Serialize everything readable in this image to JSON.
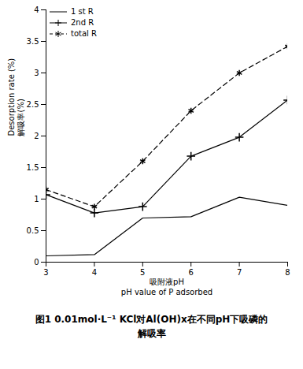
{
  "chart_data": {
    "type": "line",
    "caption": "图1 0.01mol·L⁻¹ KCl对Al(OH)x在不同pH下吸磷的解吸率",
    "x_label": [
      "吸附液pH",
      "pH value of P adsorbed"
    ],
    "y_label": [
      "Desorption rate (%)",
      "解吸率(%)"
    ],
    "x": [
      3,
      4,
      5,
      6,
      7,
      8
    ],
    "series": [
      {
        "name": "1 st R",
        "color": "#000000",
        "marker": "none",
        "line_style": "solid",
        "values": [
          0.1,
          0.12,
          0.7,
          0.72,
          1.03,
          0.9
        ]
      },
      {
        "name": "2nd R",
        "color": "#000000",
        "marker": "plus",
        "line_style": "solid",
        "values": [
          1.07,
          0.78,
          0.88,
          1.68,
          1.98,
          2.57
        ]
      },
      {
        "name": "total R",
        "color": "#000000",
        "marker": "asterisk",
        "line_style": "dashed",
        "values": [
          1.15,
          0.88,
          1.6,
          2.4,
          3.0,
          3.42
        ]
      }
    ],
    "xlim": [
      3,
      8
    ],
    "xticks": [
      3,
      4,
      5,
      6,
      7,
      8
    ],
    "ylim": [
      0,
      4
    ],
    "yticks": [
      0,
      0.5,
      1,
      1.5,
      2,
      2.5,
      3,
      3.5,
      4
    ],
    "grid": false,
    "legend": "top-left"
  }
}
